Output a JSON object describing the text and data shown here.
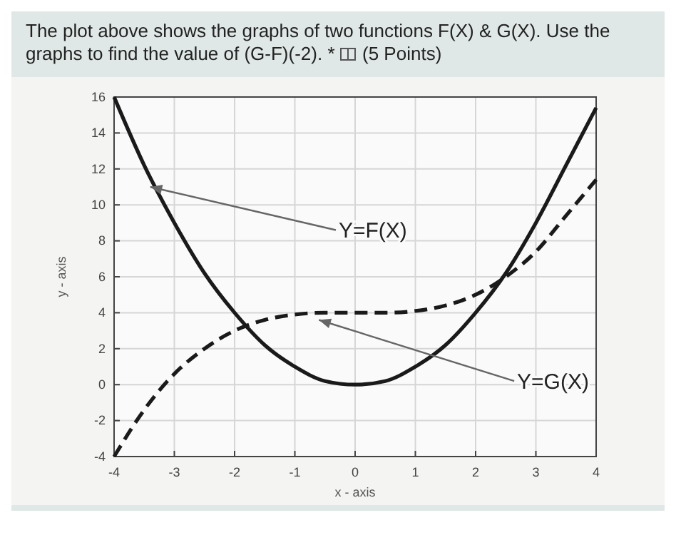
{
  "chart_data": {
    "type": "line",
    "title": "The plot above shows the graphs of two functions F(X) & G(X). Use the graphs to find the value of (G-F)(-2). *",
    "xlabel": "x - axis",
    "ylabel": "y - axis",
    "x": [
      -4,
      -3.5,
      -3,
      -2.5,
      -2,
      -1.5,
      -1,
      -0.5,
      0,
      0.5,
      1,
      1.5,
      2,
      2.5,
      3,
      3.5,
      4
    ],
    "series": [
      {
        "color": "#1a1a1a",
        "line_style": "solid",
        "values": [
          16,
          12.2,
          9,
          6.2,
          4,
          2.2,
          1,
          0.2,
          0,
          0.2,
          1,
          2.2,
          4,
          6.2,
          9,
          12.2,
          15.4
        ]
      },
      {
        "color": "#1a1a1a",
        "line_style": "dashed",
        "values": [
          -4,
          -1.4,
          0.6,
          2,
          3,
          3.6,
          3.9,
          4,
          4,
          4,
          4.1,
          4.4,
          5,
          6,
          7.4,
          9.4,
          11.4
        ]
      }
    ],
    "xlim": [
      -4,
      4
    ],
    "xticks": [
      -4,
      -3,
      -2,
      -1,
      0,
      1,
      2,
      3,
      4
    ],
    "ylim": [
      -4,
      16
    ],
    "yticks": [
      -4,
      -2,
      0,
      2,
      4,
      6,
      8,
      10,
      12,
      14,
      16
    ],
    "grid": true,
    "marker": "none",
    "annotations": [
      "(5 Points)",
      {
        "text": "Y=F(X)",
        "x": -3.4,
        "y": 11
      },
      {
        "text": "Y=G(X)",
        "x": -0.6,
        "y": 3.6
      }
    ]
  }
}
